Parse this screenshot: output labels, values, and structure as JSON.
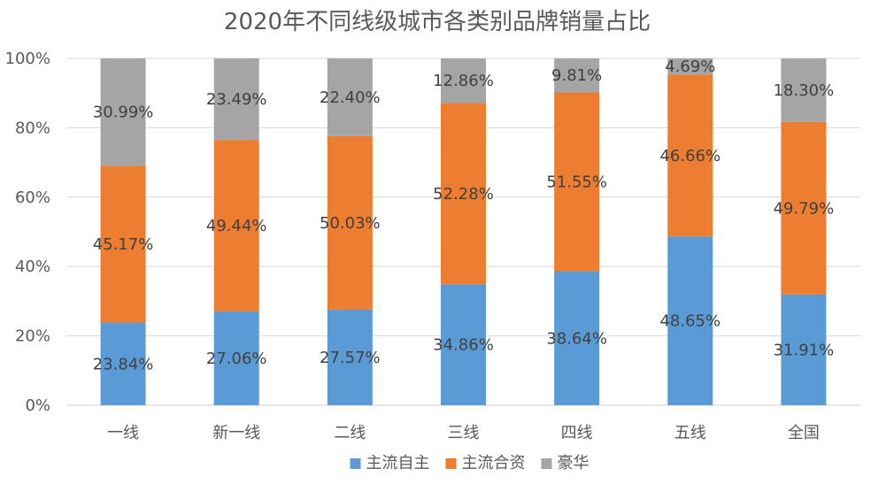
{
  "chart_data": {
    "type": "bar",
    "stacked": true,
    "title": "2020年不同线级城市各类别品牌销量占比",
    "categories": [
      "一线",
      "新一线",
      "二线",
      "三线",
      "四线",
      "五线",
      "全国"
    ],
    "y_ticks": [
      "0%",
      "20%",
      "40%",
      "60%",
      "80%",
      "100%"
    ],
    "ylim": [
      0,
      100
    ],
    "grid": true,
    "legend_position": "bottom",
    "series": [
      {
        "name": "主流自主",
        "color": "#5B9BD5",
        "values": [
          23.84,
          27.06,
          27.57,
          34.86,
          38.64,
          48.65,
          31.91
        ],
        "labels": [
          "23.84%",
          "27.06%",
          "27.57%",
          "34.86%",
          "38.64%",
          "48.65%",
          "31.91%"
        ]
      },
      {
        "name": "主流合资",
        "color": "#ED7D31",
        "values": [
          45.17,
          49.44,
          50.03,
          52.28,
          51.55,
          46.66,
          49.79
        ],
        "labels": [
          "45.17%",
          "49.44%",
          "50.03%",
          "52.28%",
          "51.55%",
          "46.66%",
          "49.79%"
        ]
      },
      {
        "name": "豪华",
        "color": "#A5A5A5",
        "values": [
          30.99,
          23.49,
          22.4,
          12.86,
          9.81,
          4.69,
          18.3
        ],
        "labels": [
          "30.99%",
          "23.49%",
          "22.40%",
          "12.86%",
          "9.81%",
          "4.69%",
          "18.30%"
        ]
      }
    ]
  }
}
